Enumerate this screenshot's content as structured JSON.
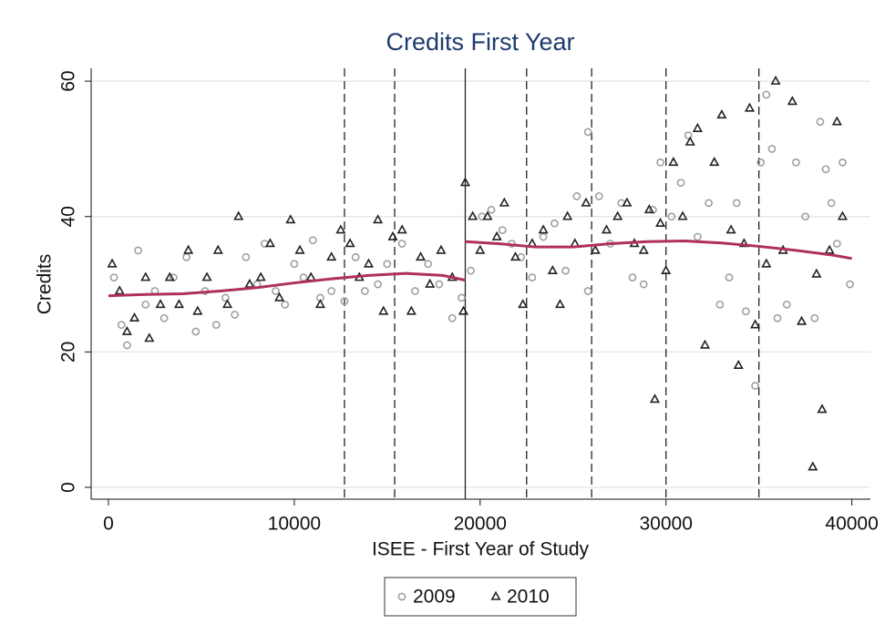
{
  "chart_data": {
    "type": "scatter",
    "title": "Credits First Year",
    "x_label": "ISEE - First Year of Study",
    "y_label": "Credits",
    "xlim": [
      -930,
      41000
    ],
    "ylim": [
      -1.75,
      61.9
    ],
    "xticks": [
      0,
      10000,
      20000,
      30000,
      40000
    ],
    "yticks": [
      0,
      20,
      40,
      60
    ],
    "grid": true,
    "series": [
      {
        "name": "2009",
        "marker": "circle",
        "color": "#a0a0a0",
        "x": [
          300,
          700,
          1000,
          1600,
          2000,
          2500,
          3000,
          3500,
          4200,
          4700,
          5200,
          5800,
          6300,
          6800,
          7400,
          8000,
          8400,
          9000,
          9500,
          10000,
          10500,
          11000,
          11400,
          12000,
          12700,
          13300,
          13800,
          14500,
          15000,
          15800,
          16500,
          17200,
          17800,
          18500,
          19000,
          19500,
          20100,
          20600,
          21200,
          21700,
          22200,
          22800,
          23400,
          24000,
          24600,
          25200,
          25800,
          26400,
          27000,
          27600,
          28200,
          28800,
          29300,
          29700,
          30300,
          30800,
          31200,
          31700,
          32300,
          32900,
          33400,
          33800,
          34300,
          34800,
          35100,
          35400,
          35700,
          36000,
          36500,
          37000,
          37500,
          38000,
          38300,
          38600,
          38900,
          39200,
          39500,
          39900,
          25800
        ],
        "y": [
          31,
          24,
          21,
          35,
          27,
          29,
          25,
          31,
          34,
          23,
          29,
          24,
          28,
          25.5,
          34,
          30,
          36,
          29,
          27,
          33,
          31,
          36.5,
          28,
          29,
          27.5,
          34,
          29,
          30,
          33,
          36,
          29,
          33,
          30,
          25,
          28,
          32,
          40,
          41,
          38,
          36,
          34,
          31,
          37,
          39,
          32,
          43,
          29,
          43,
          36,
          42,
          31,
          30,
          41,
          48,
          40,
          45,
          52,
          37,
          42,
          27,
          31,
          42,
          26,
          15,
          48,
          58,
          50,
          25,
          27,
          48,
          40,
          25,
          54,
          47,
          42,
          36,
          48,
          30,
          52.5
        ]
      },
      {
        "name": "2010",
        "marker": "triangle",
        "color": "#222222",
        "x": [
          200,
          600,
          1000,
          1400,
          2000,
          2200,
          2800,
          3300,
          3800,
          4300,
          4800,
          5300,
          5900,
          6400,
          7000,
          7600,
          8200,
          8700,
          9200,
          9800,
          10300,
          10900,
          11400,
          12000,
          12500,
          13000,
          13500,
          14000,
          14500,
          14800,
          15300,
          15800,
          16300,
          16800,
          17300,
          17900,
          18500,
          19100,
          19200,
          19600,
          20000,
          20400,
          20900,
          21300,
          21900,
          22300,
          22800,
          23400,
          23900,
          24300,
          24700,
          25100,
          25700,
          26200,
          26800,
          27400,
          27900,
          28300,
          28800,
          29100,
          29400,
          29700,
          30000,
          30400,
          30900,
          31300,
          31700,
          32100,
          32600,
          33000,
          33500,
          33900,
          34200,
          34500,
          34800,
          35400,
          35900,
          36300,
          36800,
          37300,
          37900,
          38100,
          38400,
          38800,
          39200,
          39500
        ],
        "y": [
          33,
          29,
          23,
          25,
          31,
          22,
          27,
          31,
          27,
          35,
          26,
          31,
          35,
          27,
          40,
          30,
          31,
          36,
          28,
          39.5,
          35,
          31,
          27,
          34,
          38,
          36,
          31,
          33,
          39.5,
          26,
          37,
          38,
          26,
          34,
          30,
          35,
          31,
          26,
          45,
          40,
          35,
          40,
          37,
          42,
          34,
          27,
          36,
          38,
          32,
          27,
          40,
          36,
          42,
          35,
          38,
          40,
          42,
          36,
          35,
          41,
          13,
          39,
          32,
          48,
          40,
          51,
          53,
          21,
          48,
          55,
          38,
          18,
          36,
          56,
          24,
          33,
          60,
          35,
          57,
          24.5,
          3,
          31.5,
          11.5,
          35,
          54,
          40
        ]
      }
    ],
    "fit_color": "#b0305a",
    "fits": [
      {
        "x": [
          0,
          2000,
          4000,
          6000,
          8000,
          10000,
          12000,
          14000,
          16000,
          18000,
          19200
        ],
        "y": [
          28.3,
          28.5,
          28.6,
          29.0,
          29.5,
          30.2,
          30.8,
          31.3,
          31.6,
          31.3,
          30.6
        ]
      },
      {
        "x": [
          19200,
          21000,
          23000,
          25000,
          27000,
          29000,
          31000,
          33000,
          35000,
          37000,
          39000,
          40000
        ],
        "y": [
          36.3,
          36.0,
          35.5,
          35.5,
          36.0,
          36.3,
          36.4,
          36.1,
          35.6,
          35.0,
          34.3,
          33.8
        ]
      }
    ],
    "vlines": [
      {
        "value": 12700,
        "style": "dashed"
      },
      {
        "value": 15400,
        "style": "dashed"
      },
      {
        "value": 19200,
        "style": "solid"
      },
      {
        "value": 22500,
        "style": "dashed"
      },
      {
        "value": 26000,
        "style": "dashed"
      },
      {
        "value": 30000,
        "style": "dashed"
      },
      {
        "value": 35000,
        "style": "dashed"
      }
    ]
  }
}
